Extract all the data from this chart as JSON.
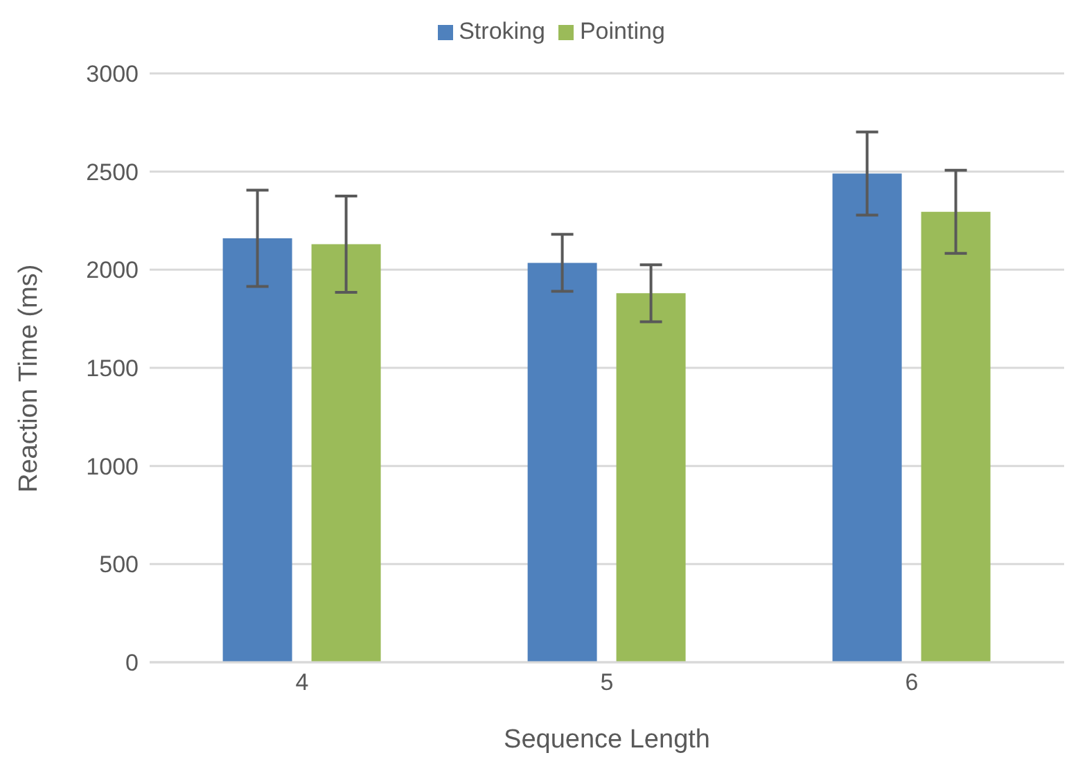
{
  "chart_data": {
    "type": "bar",
    "xlabel": "Sequence Length",
    "ylabel": "Reaction Time (ms)",
    "categories": [
      "4",
      "5",
      "6"
    ],
    "series": [
      {
        "name": "Stroking",
        "color": "#4f81bd",
        "values": [
          2160,
          2035,
          2490
        ],
        "errors": [
          245,
          145,
          212
        ]
      },
      {
        "name": "Pointing",
        "color": "#9bbb59",
        "values": [
          2130,
          1880,
          2295
        ],
        "errors": [
          245,
          145,
          212
        ]
      }
    ],
    "ylim": [
      0,
      3000
    ],
    "yticks": [
      0,
      500,
      1000,
      1500,
      2000,
      2500,
      3000
    ],
    "grid": "y",
    "legend": "top"
  }
}
